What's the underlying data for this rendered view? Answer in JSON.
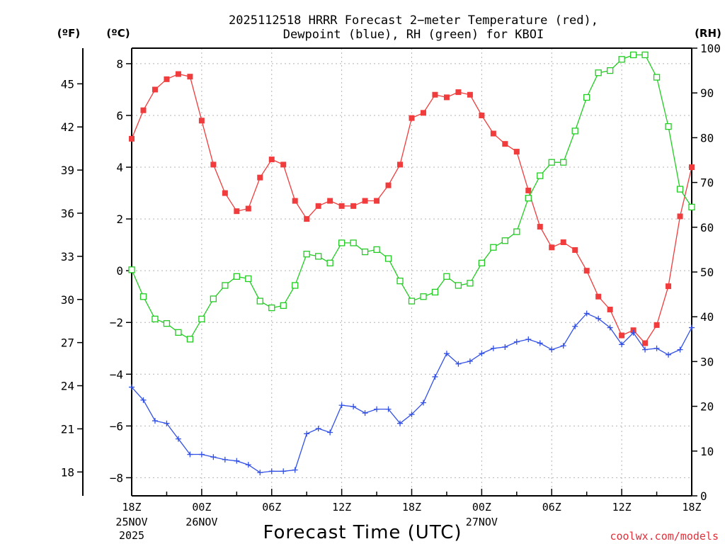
{
  "title_line1": "2025112518 HRRR Forecast 2−meter Temperature (red),",
  "title_line2": "Dewpoint (blue), RH (green) for KBOI",
  "unit_f": "(ºF)",
  "unit_c": "(ºC)",
  "unit_rh": "(RH)",
  "xlabel": "Forecast Time (UTC)",
  "credit": "coolwx.com/models",
  "colors": {
    "temperature": "#f03c3c",
    "dewpoint": "#3250e6",
    "rh": "#22cc22",
    "grid": "#b4b4b4"
  },
  "chart_data": {
    "type": "line",
    "title": "2025112518 HRRR Forecast 2−meter Temperature (red), Dewpoint (blue), RH (green) for KBOI",
    "xlabel": "Forecast Time (UTC)",
    "x_unit": "forecast hour from 2025112518",
    "xlim": [
      0,
      48
    ],
    "x_ticks": [
      {
        "hour": 0,
        "label": "18Z",
        "date": "25NOV",
        "year": "2025"
      },
      {
        "hour": 6,
        "label": "00Z",
        "date": "26NOV"
      },
      {
        "hour": 12,
        "label": "06Z"
      },
      {
        "hour": 18,
        "label": "12Z"
      },
      {
        "hour": 24,
        "label": "18Z"
      },
      {
        "hour": 30,
        "label": "00Z",
        "date": "27NOV"
      },
      {
        "hour": 36,
        "label": "06Z"
      },
      {
        "hour": 42,
        "label": "12Z"
      },
      {
        "hour": 48,
        "label": "18Z"
      }
    ],
    "y_left_c": {
      "label": "(ºC)",
      "ylim": [
        -8.7,
        8.6
      ],
      "ticks": [
        -8,
        -6,
        -4,
        -2,
        0,
        2,
        4,
        6,
        8
      ]
    },
    "y_left_f": {
      "label": "(ºF)",
      "ticks": [
        18,
        21,
        24,
        27,
        30,
        33,
        36,
        39,
        42,
        45
      ]
    },
    "y_right_rh": {
      "label": "(RH)",
      "ylim": [
        0,
        100
      ],
      "ticks": [
        0,
        10,
        20,
        30,
        40,
        50,
        60,
        70,
        80,
        90,
        100
      ]
    },
    "grid": true,
    "series": [
      {
        "name": "Temperature",
        "axis": "celsius",
        "color": "#f03c3c",
        "marker": "filled-square",
        "values": [
          5.1,
          6.2,
          7.0,
          7.4,
          7.6,
          7.5,
          5.8,
          4.1,
          3.0,
          2.3,
          2.4,
          3.6,
          4.3,
          4.1,
          2.7,
          2.0,
          2.5,
          2.7,
          2.5,
          2.5,
          2.7,
          2.7,
          3.3,
          4.1,
          5.9,
          6.1,
          6.8,
          6.7,
          6.9,
          6.8,
          6.0,
          5.3,
          4.9,
          4.6,
          3.1,
          1.7,
          0.9,
          1.1,
          0.8,
          0.0,
          -1.0,
          -1.5,
          -2.5,
          -2.3,
          -2.8,
          -2.1,
          -0.6,
          2.1,
          4.0
        ]
      },
      {
        "name": "Dewpoint",
        "axis": "celsius",
        "color": "#3250e6",
        "marker": "plus",
        "values": [
          -4.5,
          -5.0,
          -5.8,
          -5.9,
          -6.5,
          -7.1,
          -7.1,
          -7.2,
          -7.3,
          -7.35,
          -7.5,
          -7.8,
          -7.75,
          -7.75,
          -7.7,
          -6.3,
          -6.1,
          -6.25,
          -5.2,
          -5.25,
          -5.5,
          -5.35,
          -5.35,
          -5.9,
          -5.55,
          -5.1,
          -4.1,
          -3.2,
          -3.6,
          -3.5,
          -3.2,
          -3.0,
          -2.95,
          -2.75,
          -2.65,
          -2.8,
          -3.05,
          -2.9,
          -2.15,
          -1.65,
          -1.85,
          -2.2,
          -2.85,
          -2.4,
          -3.05,
          -3.0,
          -3.25,
          -3.05,
          -2.2
        ]
      },
      {
        "name": "RH",
        "axis": "rh",
        "color": "#22cc22",
        "marker": "open-square",
        "values": [
          50.5,
          44.5,
          39.5,
          38.5,
          36.5,
          35.0,
          39.5,
          44.0,
          47.0,
          49.0,
          48.5,
          43.5,
          42.0,
          42.5,
          47.0,
          54.0,
          53.5,
          52.0,
          56.5,
          56.5,
          54.5,
          55.0,
          53.0,
          48.0,
          43.5,
          44.5,
          45.5,
          49.0,
          47.0,
          47.5,
          52.0,
          55.5,
          57.0,
          59.0,
          66.5,
          71.5,
          74.5,
          74.5,
          81.5,
          89.0,
          94.5,
          95.0,
          97.5,
          98.5,
          98.5,
          93.5,
          82.5,
          68.5,
          64.5
        ]
      }
    ]
  }
}
